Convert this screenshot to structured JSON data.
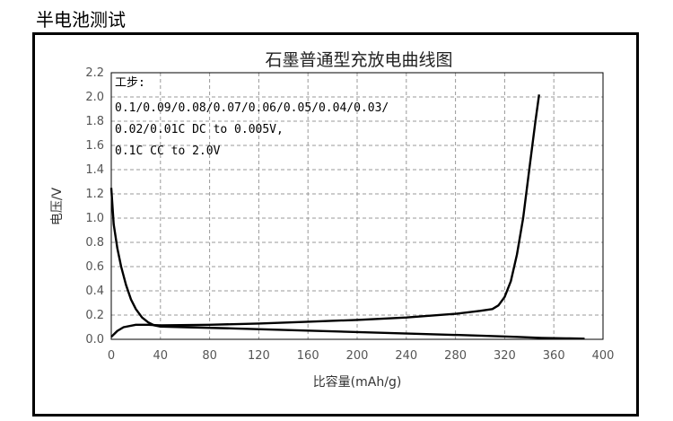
{
  "page_heading": "半电池测试",
  "chart_data": {
    "type": "line",
    "title": "石墨普通型充放电曲线图",
    "xlabel": "比容量(mAh/g)",
    "ylabel": "电压/V",
    "xlim": [
      0,
      400
    ],
    "ylim": [
      0,
      2.2
    ],
    "xticks": [
      0,
      40,
      80,
      120,
      160,
      200,
      240,
      280,
      320,
      360,
      400
    ],
    "yticks": [
      0.0,
      0.2,
      0.4,
      0.6,
      0.8,
      1.0,
      1.2,
      1.4,
      1.6,
      1.8,
      2.0,
      2.2
    ],
    "grid": true,
    "annotations": [
      "工步:",
      "0.1/0.09/0.08/0.07/0.06/0.05/0.04/0.03/",
      "0.02/0.01C DC to 0.005V,",
      "0.1C CC to 2.0V"
    ],
    "series": [
      {
        "color": "#000000",
        "x": [
          0,
          2,
          5,
          8,
          12,
          16,
          20,
          25,
          30,
          35,
          40,
          60,
          100,
          150,
          200,
          250,
          300,
          330,
          350,
          370,
          385
        ],
        "y": [
          1.25,
          0.95,
          0.75,
          0.6,
          0.45,
          0.33,
          0.25,
          0.18,
          0.14,
          0.115,
          0.105,
          0.1,
          0.09,
          0.075,
          0.06,
          0.045,
          0.03,
          0.02,
          0.012,
          0.008,
          0.005
        ]
      },
      {
        "color": "#000000",
        "x": [
          0,
          5,
          10,
          20,
          30,
          40,
          80,
          120,
          160,
          200,
          240,
          280,
          300,
          310,
          315,
          320,
          325,
          330,
          335,
          340,
          345,
          348
        ],
        "y": [
          0.02,
          0.07,
          0.1,
          0.12,
          0.12,
          0.115,
          0.12,
          0.13,
          0.145,
          0.16,
          0.18,
          0.21,
          0.235,
          0.25,
          0.28,
          0.35,
          0.48,
          0.7,
          1.0,
          1.4,
          1.8,
          2.02
        ]
      }
    ]
  }
}
